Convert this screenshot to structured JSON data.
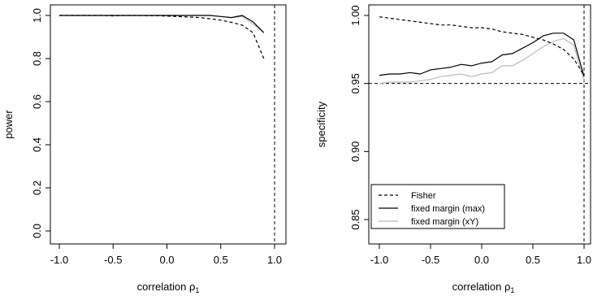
{
  "chart_data": [
    {
      "type": "line",
      "xlabel": "correlation ρ",
      "xlabel_sub": "1",
      "ylabel": "power",
      "xlim": [
        -1.0,
        1.0
      ],
      "ylim": [
        0.0,
        1.0
      ],
      "xticks": [
        "-1.0",
        "-0.5",
        "0.0",
        "0.5",
        "1.0"
      ],
      "yticks": [
        "0.0",
        "0.2",
        "0.4",
        "0.6",
        "0.8",
        "1.0"
      ],
      "x": [
        -1.0,
        -0.9,
        -0.8,
        -0.7,
        -0.6,
        -0.5,
        -0.4,
        -0.3,
        -0.2,
        -0.1,
        0.0,
        0.1,
        0.2,
        0.3,
        0.4,
        0.5,
        0.6,
        0.7,
        0.8,
        0.9
      ],
      "vlines": [
        1.0
      ],
      "hlines": [],
      "series": [
        {
          "style": "dashed",
          "color": "#000000",
          "values": [
            1.0,
            1.0,
            1.0,
            1.0,
            1.0,
            0.998,
            1.0,
            1.0,
            0.999,
            0.999,
            0.997,
            0.995,
            0.993,
            0.99,
            0.985,
            0.978,
            0.968,
            0.955,
            0.92,
            0.8
          ]
        },
        {
          "style": "solid",
          "color": "#000000",
          "values": [
            1.0,
            1.0,
            1.0,
            1.0,
            1.0,
            1.0,
            1.0,
            1.0,
            1.0,
            1.0,
            1.0,
            1.0,
            1.0,
            1.0,
            1.0,
            0.995,
            0.99,
            1.0,
            0.97,
            0.92
          ]
        },
        {
          "style": "solid",
          "color": "#bbbbbb",
          "values": [
            1.0,
            1.0,
            1.0,
            1.0,
            1.0,
            1.0,
            1.0,
            1.0,
            1.0,
            1.0,
            1.0,
            1.0,
            1.0,
            1.0,
            1.0,
            0.995,
            0.99,
            0.995,
            0.96,
            0.92
          ]
        }
      ]
    },
    {
      "type": "line",
      "xlabel": "correlation ρ",
      "xlabel_sub": "1",
      "ylabel": "specificity",
      "xlim": [
        -1.0,
        1.0
      ],
      "ylim": [
        0.85,
        1.0
      ],
      "xticks": [
        "-1.0",
        "-0.5",
        "0.0",
        "0.5",
        "1.0"
      ],
      "yticks": [
        "0.85",
        "0.90",
        "0.95",
        "1.00"
      ],
      "x": [
        -1.0,
        -0.9,
        -0.8,
        -0.7,
        -0.6,
        -0.5,
        -0.4,
        -0.3,
        -0.2,
        -0.1,
        0.0,
        0.1,
        0.2,
        0.3,
        0.4,
        0.5,
        0.6,
        0.7,
        0.8,
        0.9,
        1.0
      ],
      "vlines": [
        1.0
      ],
      "hlines": [
        0.95
      ],
      "legend_position": "bottom-left",
      "series": [
        {
          "name": "Fisher",
          "style": "dashed",
          "color": "#000000",
          "values": [
            0.999,
            0.998,
            0.997,
            0.996,
            0.995,
            0.994,
            0.993,
            0.993,
            0.992,
            0.991,
            0.991,
            0.99,
            0.988,
            0.987,
            0.986,
            0.984,
            0.982,
            0.979,
            0.975,
            0.968,
            0.956
          ]
        },
        {
          "name": "fixed margin (max)",
          "style": "solid",
          "color": "#000000",
          "values": [
            0.956,
            0.957,
            0.957,
            0.958,
            0.957,
            0.96,
            0.961,
            0.962,
            0.964,
            0.963,
            0.965,
            0.966,
            0.971,
            0.972,
            0.976,
            0.98,
            0.985,
            0.987,
            0.987,
            0.982,
            0.955
          ]
        },
        {
          "name": "fixed margin (xY)",
          "style": "solid",
          "color": "#bbbbbb",
          "values": [
            0.95,
            0.951,
            0.951,
            0.951,
            0.952,
            0.953,
            0.955,
            0.956,
            0.957,
            0.955,
            0.957,
            0.958,
            0.963,
            0.963,
            0.967,
            0.972,
            0.977,
            0.981,
            0.983,
            0.978,
            0.952
          ]
        }
      ]
    }
  ]
}
